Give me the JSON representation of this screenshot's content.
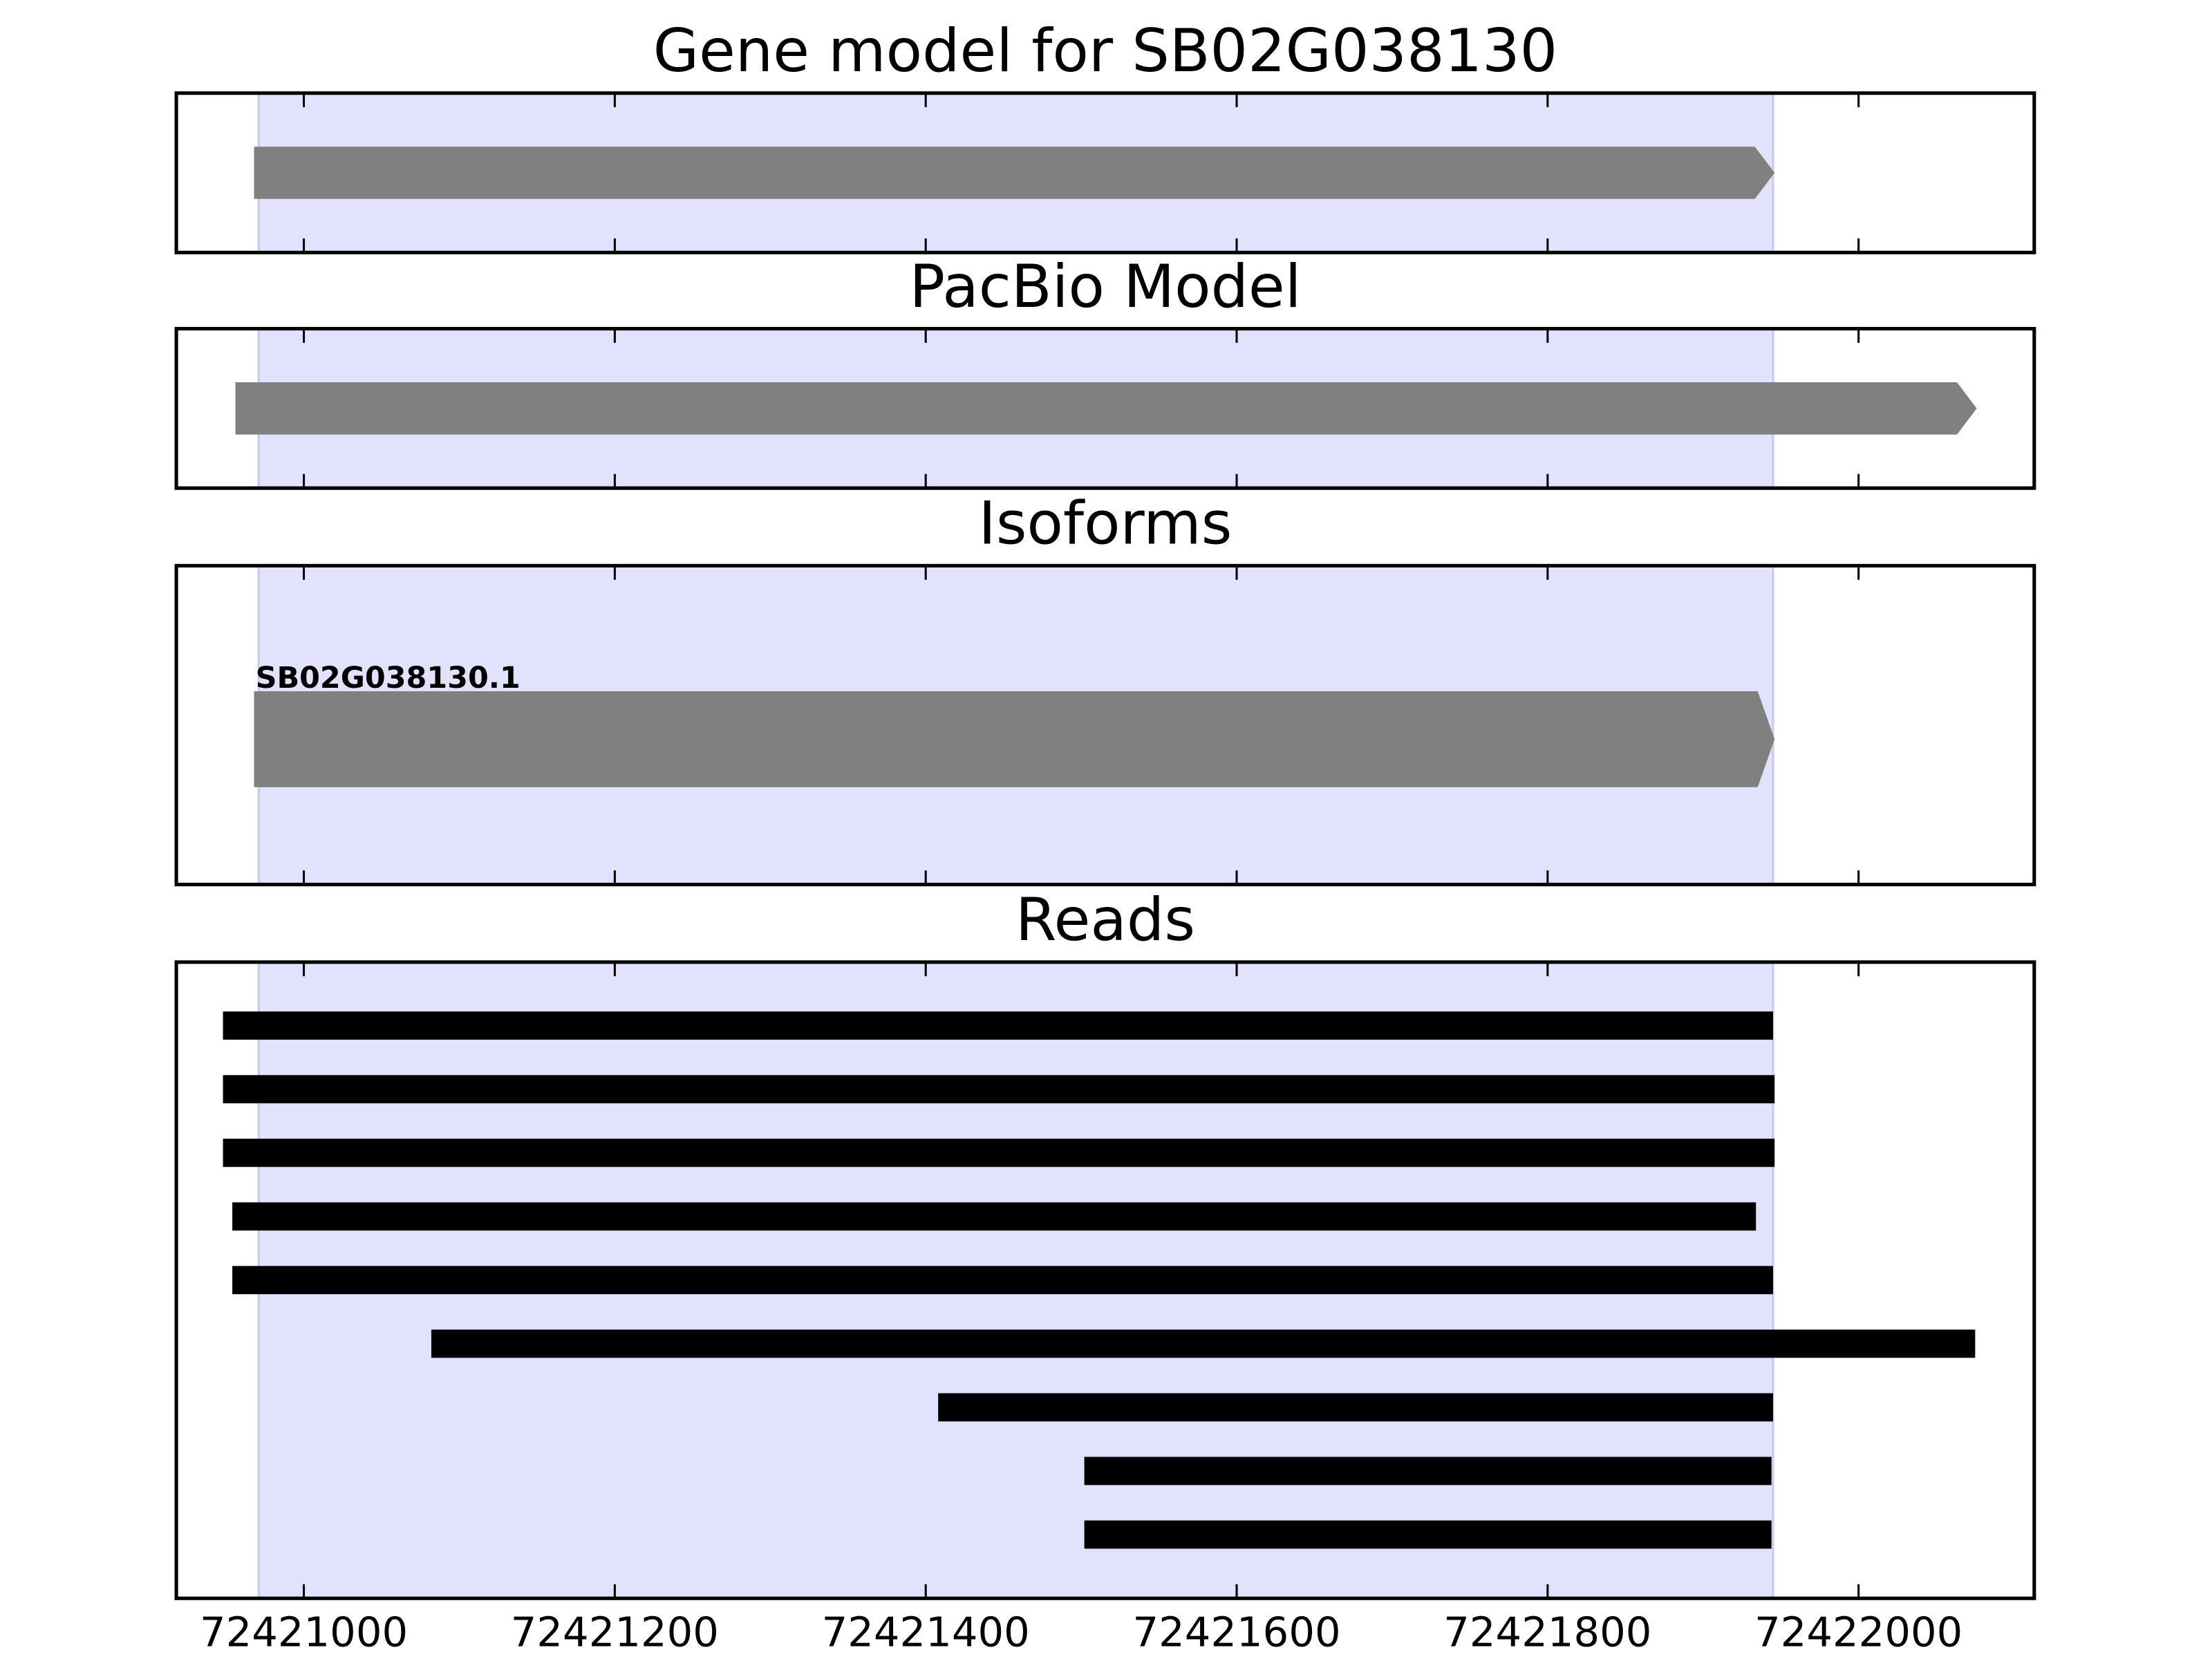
{
  "chart_data": [
    {
      "type": "gene",
      "title": "Gene model for SB02G038130",
      "xlim": [
        72420918,
        72422113
      ],
      "xticks": [
        72421000,
        72421200,
        72421400,
        72421600,
        72421800,
        72422000
      ],
      "highlight": [
        72420971,
        72421945
      ],
      "highlight_color": "#e2e2fc",
      "features": [
        {
          "start": 72420968,
          "end": 72421946,
          "color": "#808080"
        }
      ]
    },
    {
      "type": "gene",
      "title": "PacBio Model",
      "xlim": [
        72420918,
        72422113
      ],
      "xticks": [
        72421000,
        72421200,
        72421400,
        72421600,
        72421800,
        72422000
      ],
      "highlight": [
        72420971,
        72421945
      ],
      "highlight_color": "#e2e2fc",
      "features": [
        {
          "start": 72420956,
          "end": 72422076,
          "color": "#808080"
        }
      ]
    },
    {
      "type": "gene",
      "title": "Isoforms",
      "xlim": [
        72420918,
        72422113
      ],
      "xticks": [
        72421000,
        72421200,
        72421400,
        72421600,
        72421800,
        72422000
      ],
      "highlight": [
        72420971,
        72421945
      ],
      "highlight_color": "#e2e2fc",
      "features": [
        {
          "name": "SB02G038130.1",
          "start": 72420968,
          "end": 72421946,
          "color": "#808080"
        }
      ]
    },
    {
      "type": "reads",
      "title": "Reads",
      "xlim": [
        72420918,
        72422113
      ],
      "xticks": [
        72421000,
        72421200,
        72421400,
        72421600,
        72421800,
        72422000
      ],
      "highlight": [
        72420971,
        72421945
      ],
      "highlight_color": "#e2e2fc",
      "color": "#000000",
      "reads": [
        {
          "start": 72420948,
          "end": 72421945
        },
        {
          "start": 72420948,
          "end": 72421946
        },
        {
          "start": 72420948,
          "end": 72421946
        },
        {
          "start": 72420954,
          "end": 72421934
        },
        {
          "start": 72420954,
          "end": 72421945
        },
        {
          "start": 72421082,
          "end": 72422075
        },
        {
          "start": 72421408,
          "end": 72421945
        },
        {
          "start": 72421502,
          "end": 72421944
        },
        {
          "start": 72421502,
          "end": 72421944
        }
      ]
    }
  ]
}
